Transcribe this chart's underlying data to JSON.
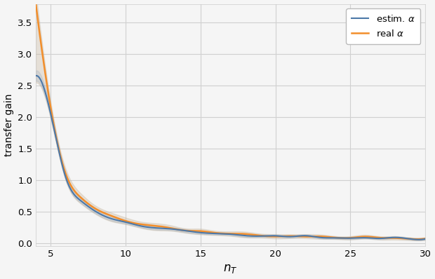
{
  "title": "",
  "xlabel": "$n_T$",
  "ylabel": "transfer gain",
  "xlim": [
    4,
    30
  ],
  "ylim": [
    -0.05,
    3.8
  ],
  "yticks": [
    0.0,
    0.5,
    1.0,
    1.5,
    2.0,
    2.5,
    3.0,
    3.5
  ],
  "xticks": [
    5,
    10,
    15,
    20,
    25,
    30
  ],
  "line1_label": "estim. $\\alpha$",
  "line2_label": "real $\\alpha$",
  "line1_color": "#4c78a8",
  "line2_color": "#f28e2b",
  "shade_color": "#c8b8a0",
  "plot_bg": "#f5f5f5",
  "fig_bg": "#f5f5f5",
  "grid_color": "#d0d0d0",
  "figsize": [
    6.2,
    3.98
  ],
  "dpi": 100
}
